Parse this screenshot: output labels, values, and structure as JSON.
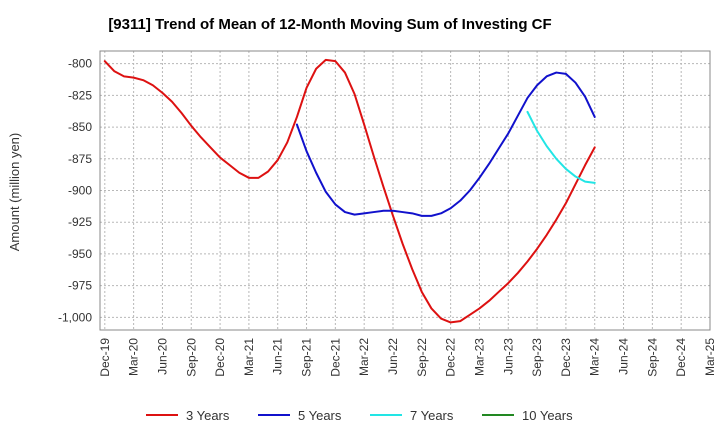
{
  "chart_data": {
    "type": "line",
    "title": "[9311]  Trend of Mean of 12-Month Moving Sum of Investing CF",
    "xlabel": "",
    "ylabel": "Amount (million yen)",
    "ylim": [
      -1010,
      -790
    ],
    "yticks": [
      -800,
      -825,
      -850,
      -875,
      -900,
      -925,
      -950,
      -975,
      -1000
    ],
    "ytick_labels": [
      "-800",
      "-825",
      "-850",
      "-875",
      "-900",
      "-925",
      "-950",
      "-975",
      "-1,000"
    ],
    "x_months_total": 64,
    "xticks": [
      {
        "month_index": 0,
        "label": "Dec-19"
      },
      {
        "month_index": 3,
        "label": "Mar-20"
      },
      {
        "month_index": 6,
        "label": "Jun-20"
      },
      {
        "month_index": 9,
        "label": "Sep-20"
      },
      {
        "month_index": 12,
        "label": "Dec-20"
      },
      {
        "month_index": 15,
        "label": "Mar-21"
      },
      {
        "month_index": 18,
        "label": "Jun-21"
      },
      {
        "month_index": 21,
        "label": "Sep-21"
      },
      {
        "month_index": 24,
        "label": "Dec-21"
      },
      {
        "month_index": 27,
        "label": "Mar-22"
      },
      {
        "month_index": 30,
        "label": "Jun-22"
      },
      {
        "month_index": 33,
        "label": "Sep-22"
      },
      {
        "month_index": 36,
        "label": "Dec-22"
      },
      {
        "month_index": 39,
        "label": "Mar-23"
      },
      {
        "month_index": 42,
        "label": "Jun-23"
      },
      {
        "month_index": 45,
        "label": "Sep-23"
      },
      {
        "month_index": 48,
        "label": "Dec-23"
      },
      {
        "month_index": 51,
        "label": "Mar-24"
      },
      {
        "month_index": 54,
        "label": "Jun-24"
      },
      {
        "month_index": 57,
        "label": "Sep-24"
      },
      {
        "month_index": 60,
        "label": "Dec-24"
      },
      {
        "month_index": 63,
        "label": "Mar-25"
      }
    ],
    "series": [
      {
        "name": "3 Years",
        "color": "#dd1111",
        "start_month_index": 0,
        "values": [
          -798,
          -806,
          -810,
          -811,
          -813,
          -817,
          -823,
          -830,
          -839,
          -849,
          -858,
          -866,
          -874,
          -880,
          -886,
          -890,
          -890,
          -885,
          -876,
          -862,
          -842,
          -819,
          -804,
          -797,
          -798,
          -807,
          -824,
          -848,
          -873,
          -897,
          -920,
          -942,
          -962,
          -980,
          -993,
          -1001,
          -1004,
          -1003,
          -998,
          -993,
          -987,
          -980,
          -973,
          -965,
          -956,
          -946,
          -935,
          -923,
          -910,
          -895,
          -880,
          -866
        ]
      },
      {
        "name": "5 Years",
        "color": "#1111cc",
        "start_month_index": 20,
        "values": [
          -848,
          -869,
          -886,
          -901,
          -911,
          -917,
          -919,
          -918,
          -917,
          -916,
          -916,
          -917,
          -918,
          -920,
          -920,
          -918,
          -914,
          -908,
          -900,
          -890,
          -879,
          -867,
          -855,
          -841,
          -827,
          -817,
          -810,
          -807,
          -808,
          -815,
          -826,
          -842
        ]
      },
      {
        "name": "7 Years",
        "color": "#22e5e5",
        "start_month_index": 44,
        "values": [
          -838,
          -853,
          -865,
          -875,
          -883,
          -889,
          -893,
          -894
        ]
      },
      {
        "name": "10 Years",
        "color": "#228822",
        "start_month_index": 51,
        "values": []
      }
    ],
    "legend_position": "bottom"
  }
}
